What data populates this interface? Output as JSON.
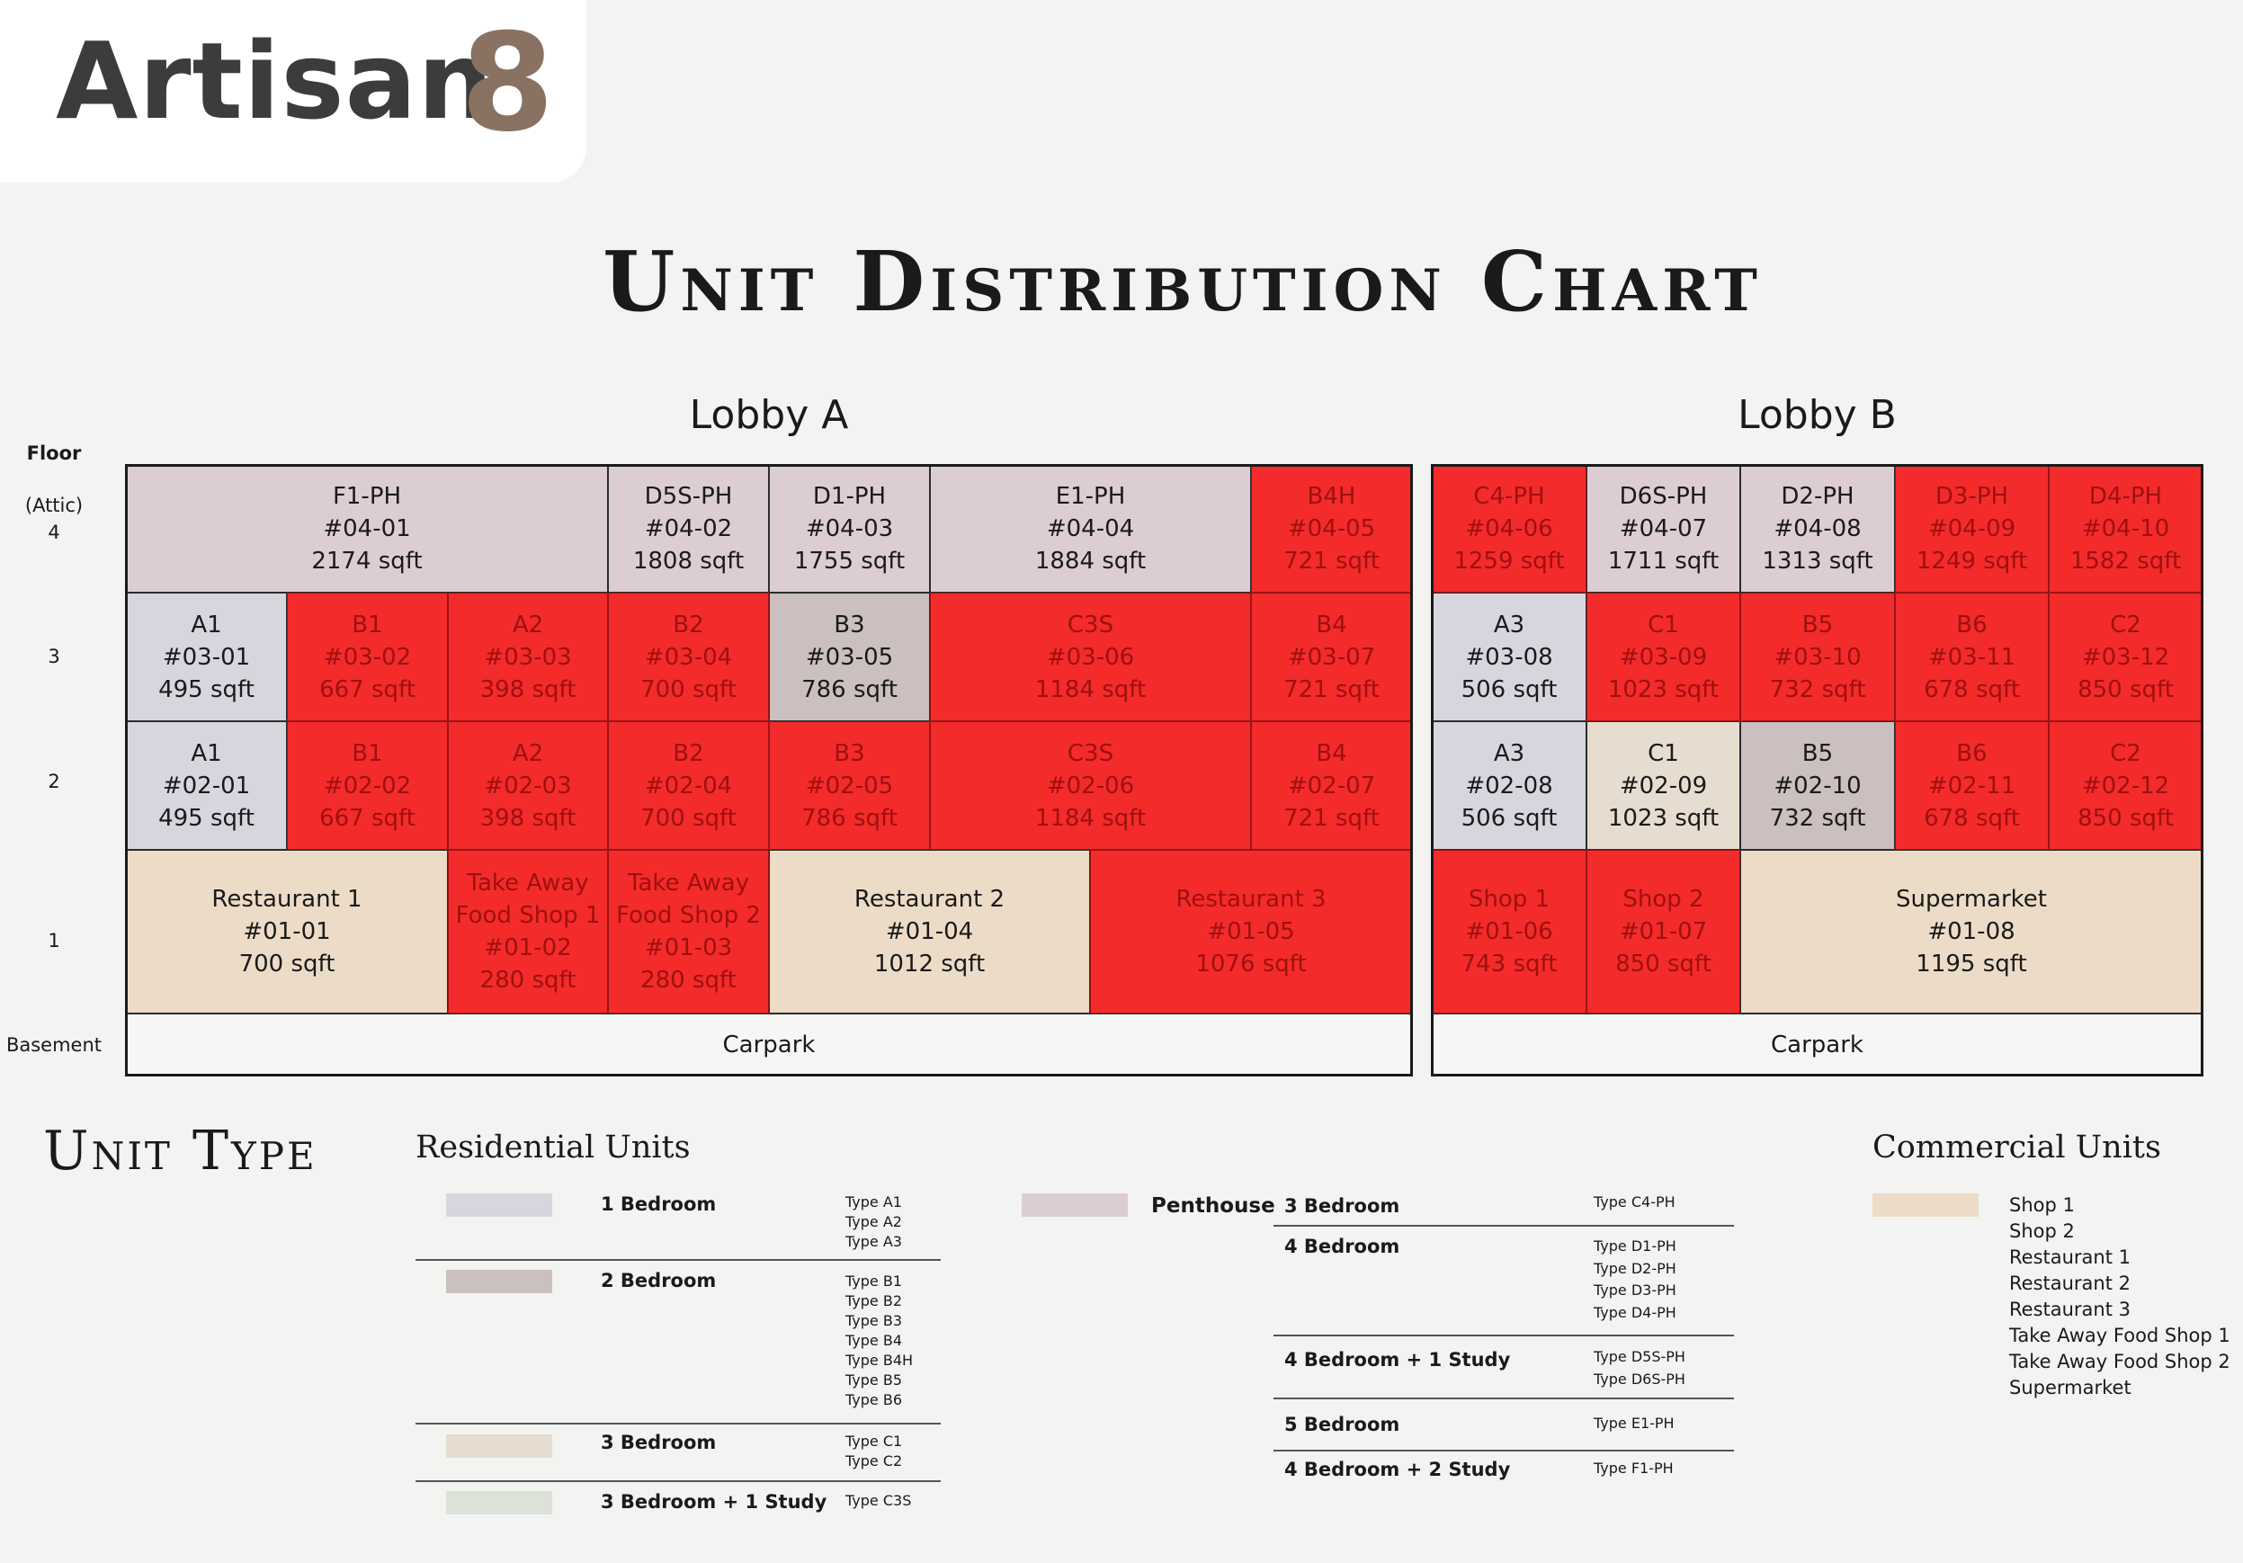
{
  "brand": {
    "name": "Artisan",
    "numeral": "8"
  },
  "title": "Unit Distribution Chart",
  "lobbies": {
    "a": "Lobby A",
    "b": "Lobby B"
  },
  "floors": {
    "header": "Floor",
    "attic_line1": "(Attic)",
    "attic_line2": "4",
    "f3": "3",
    "f2": "2",
    "f1": "1",
    "basement": "Basement"
  },
  "colors": {
    "sold_red": "#f32b2b",
    "penthouse": "#dccdd4",
    "one_bedroom": "#d6d7de",
    "two_bedroom": "#cbbfbf",
    "three_bedroom": "#e6ddd0",
    "three_bedroom_study": "#dde2d8",
    "commercial": "#ecdcc7"
  },
  "lobby_a": {
    "f4": [
      {
        "type": "F1-PH",
        "unit": "#04-01",
        "size": "2174 sqft"
      },
      {
        "type": "D5S-PH",
        "unit": "#04-02",
        "size": "1808 sqft"
      },
      {
        "type": "D1-PH",
        "unit": "#04-03",
        "size": "1755 sqft"
      },
      {
        "type": "E1-PH",
        "unit": "#04-04",
        "size": "1884 sqft"
      },
      {
        "type": "B4H",
        "unit": "#04-05",
        "size": "721 sqft"
      }
    ],
    "f3": [
      {
        "type": "A1",
        "unit": "#03-01",
        "size": "495 sqft"
      },
      {
        "type": "B1",
        "unit": "#03-02",
        "size": "667 sqft"
      },
      {
        "type": "A2",
        "unit": "#03-03",
        "size": "398 sqft"
      },
      {
        "type": "B2",
        "unit": "#03-04",
        "size": "700 sqft"
      },
      {
        "type": "B3",
        "unit": "#03-05",
        "size": "786 sqft"
      },
      {
        "type": "C3S",
        "unit": "#03-06",
        "size": "1184 sqft"
      },
      {
        "type": "B4",
        "unit": "#03-07",
        "size": "721 sqft"
      }
    ],
    "f2": [
      {
        "type": "A1",
        "unit": "#02-01",
        "size": "495 sqft"
      },
      {
        "type": "B1",
        "unit": "#02-02",
        "size": "667 sqft"
      },
      {
        "type": "A2",
        "unit": "#02-03",
        "size": "398 sqft"
      },
      {
        "type": "B2",
        "unit": "#02-04",
        "size": "700 sqft"
      },
      {
        "type": "B3",
        "unit": "#02-05",
        "size": "786 sqft"
      },
      {
        "type": "C3S",
        "unit": "#02-06",
        "size": "1184 sqft"
      },
      {
        "type": "B4",
        "unit": "#02-07",
        "size": "721 sqft"
      }
    ],
    "f1": [
      {
        "type": "Restaurant 1",
        "unit": "#01-01",
        "size": "700 sqft"
      },
      {
        "type1": "Take Away",
        "type2": "Food Shop 1",
        "unit": "#01-02",
        "size": "280 sqft"
      },
      {
        "type1": "Take Away",
        "type2": "Food Shop 2",
        "unit": "#01-03",
        "size": "280 sqft"
      },
      {
        "type": "Restaurant 2",
        "unit": "#01-04",
        "size": "1012 sqft"
      },
      {
        "type": "Restaurant 3",
        "unit": "#01-05",
        "size": "1076 sqft"
      }
    ],
    "basement": "Carpark"
  },
  "lobby_b": {
    "f4": [
      {
        "type": "C4-PH",
        "unit": "#04-06",
        "size": "1259 sqft"
      },
      {
        "type": "D6S-PH",
        "unit": "#04-07",
        "size": "1711 sqft"
      },
      {
        "type": "D2-PH",
        "unit": "#04-08",
        "size": "1313 sqft"
      },
      {
        "type": "D3-PH",
        "unit": "#04-09",
        "size": "1249 sqft"
      },
      {
        "type": "D4-PH",
        "unit": "#04-10",
        "size": "1582 sqft"
      }
    ],
    "f3": [
      {
        "type": "A3",
        "unit": "#03-08",
        "size": "506 sqft"
      },
      {
        "type": "C1",
        "unit": "#03-09",
        "size": "1023 sqft"
      },
      {
        "type": "B5",
        "unit": "#03-10",
        "size": "732 sqft"
      },
      {
        "type": "B6",
        "unit": "#03-11",
        "size": "678 sqft"
      },
      {
        "type": "C2",
        "unit": "#03-12",
        "size": "850 sqft"
      }
    ],
    "f2": [
      {
        "type": "A3",
        "unit": "#02-08",
        "size": "506 sqft"
      },
      {
        "type": "C1",
        "unit": "#02-09",
        "size": "1023 sqft"
      },
      {
        "type": "B5",
        "unit": "#02-10",
        "size": "732 sqft"
      },
      {
        "type": "B6",
        "unit": "#02-11",
        "size": "678 sqft"
      },
      {
        "type": "C2",
        "unit": "#02-12",
        "size": "850 sqft"
      }
    ],
    "f1": [
      {
        "type": "Shop 1",
        "unit": "#01-06",
        "size": "743 sqft"
      },
      {
        "type": "Shop 2",
        "unit": "#01-07",
        "size": "850 sqft"
      },
      {
        "type": "Supermarket",
        "unit": "#01-08",
        "size": "1195 sqft"
      }
    ],
    "basement": "Carpark"
  },
  "legend": {
    "title": "Unit Type",
    "residential_title": "Residential Units",
    "commercial_title": "Commercial Units",
    "residential": [
      {
        "label": "1 Bedroom",
        "types": [
          "Type A1",
          "Type A2",
          "Type A3"
        ]
      },
      {
        "label": "2 Bedroom",
        "types": [
          "Type B1",
          "Type B2",
          "Type B3",
          "Type B4",
          "Type B4H",
          "Type B5",
          "Type B6"
        ]
      },
      {
        "label": "3 Bedroom",
        "types": [
          "Type C1",
          "Type C2"
        ]
      },
      {
        "label": "3 Bedroom + 1 Study",
        "types": [
          "Type C3S"
        ]
      }
    ],
    "penthouse_label": "Penthouse",
    "penthouse": [
      {
        "label": "3 Bedroom",
        "types": [
          "Type C4-PH"
        ]
      },
      {
        "label": "4 Bedroom",
        "types": [
          "Type D1-PH",
          "Type D2-PH",
          "Type D3-PH",
          "Type D4-PH"
        ]
      },
      {
        "label": "4 Bedroom + 1 Study",
        "types": [
          "Type D5S-PH",
          "Type D6S-PH"
        ]
      },
      {
        "label": "5 Bedroom",
        "types": [
          "Type E1-PH"
        ]
      },
      {
        "label": "4 Bedroom + 2 Study",
        "types": [
          "Type F1-PH"
        ]
      }
    ],
    "commercial": [
      "Shop 1",
      "Shop 2",
      "Restaurant 1",
      "Restaurant 2",
      "Restaurant 3",
      "Take Away Food Shop 1",
      "Take Away Food Shop 2",
      "Supermarket"
    ]
  }
}
